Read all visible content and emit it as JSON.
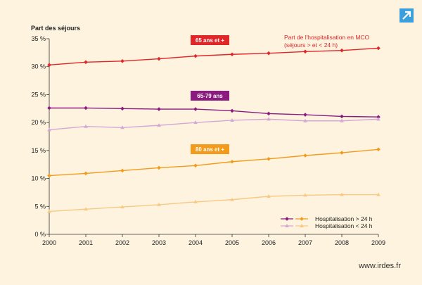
{
  "chart_data": {
    "type": "line",
    "ylabel": "Part des séjours",
    "x": [
      2000,
      2001,
      2002,
      2003,
      2004,
      2005,
      2006,
      2007,
      2008,
      2009
    ],
    "xlim": [
      2000,
      2009
    ],
    "ylim": [
      0,
      35
    ],
    "ytick_values": [
      0,
      5,
      10,
      15,
      20,
      25,
      30,
      35
    ],
    "ytick_labels": [
      "0 %",
      "5 %",
      "10 %",
      "15 %",
      "20 %",
      "25 %",
      "30 %",
      "35 %"
    ],
    "grid": false,
    "series": [
      {
        "name": "65 ans et +",
        "values": [
          30.3,
          30.8,
          31.0,
          31.4,
          31.9,
          32.2,
          32.4,
          32.7,
          32.9,
          33.3
        ],
        "color": "#e1262a",
        "marker": "diamond"
      },
      {
        "name": "",
        "values": [
          22.6,
          22.6,
          22.5,
          22.4,
          22.4,
          22.1,
          21.6,
          21.4,
          21.1,
          21.0
        ],
        "color": "#8b1b7e",
        "marker": "diamond"
      },
      {
        "name": "",
        "values": [
          18.7,
          19.3,
          19.1,
          19.5,
          20.0,
          20.4,
          20.6,
          20.3,
          20.3,
          20.6
        ],
        "color": "#d4a8d4",
        "marker": "triangle"
      },
      {
        "name": "",
        "values": [
          10.5,
          10.9,
          11.4,
          11.9,
          12.3,
          13.0,
          13.5,
          14.1,
          14.6,
          15.2
        ],
        "color": "#f39a1b",
        "marker": "diamond"
      },
      {
        "name": "",
        "values": [
          4.1,
          4.5,
          4.9,
          5.3,
          5.8,
          6.2,
          6.8,
          7.0,
          7.1,
          7.1
        ],
        "color": "#f8c985",
        "marker": "triangle"
      }
    ],
    "labels": [
      {
        "text": "65 ans et +",
        "color": "#e1262a"
      },
      {
        "text": "65-79 ans",
        "color": "#8b1b7e"
      },
      {
        "text": "80 ans et +",
        "color": "#f39a1b"
      }
    ],
    "annotation": [
      "Part de l'hospitalisation en MCO",
      "(séjours > et < 24 h)"
    ],
    "legend": {
      "placement": "bottom-right",
      "entries": [
        {
          "text": "Hospitalisation > 24 h",
          "colors": [
            "#8b1b7e",
            "#f39a1b"
          ],
          "marker": "diamond"
        },
        {
          "text": "Hospitalisation < 24 h",
          "colors": [
            "#d4a8d4",
            "#f8c985"
          ],
          "marker": "triangle"
        }
      ]
    }
  },
  "footer": {
    "site": "www.irdes.fr"
  },
  "icons": {
    "corner": "expand-arrow-icon"
  },
  "colors": {
    "background": "#fdf3df",
    "corner_icon": "#3a9fdc"
  }
}
